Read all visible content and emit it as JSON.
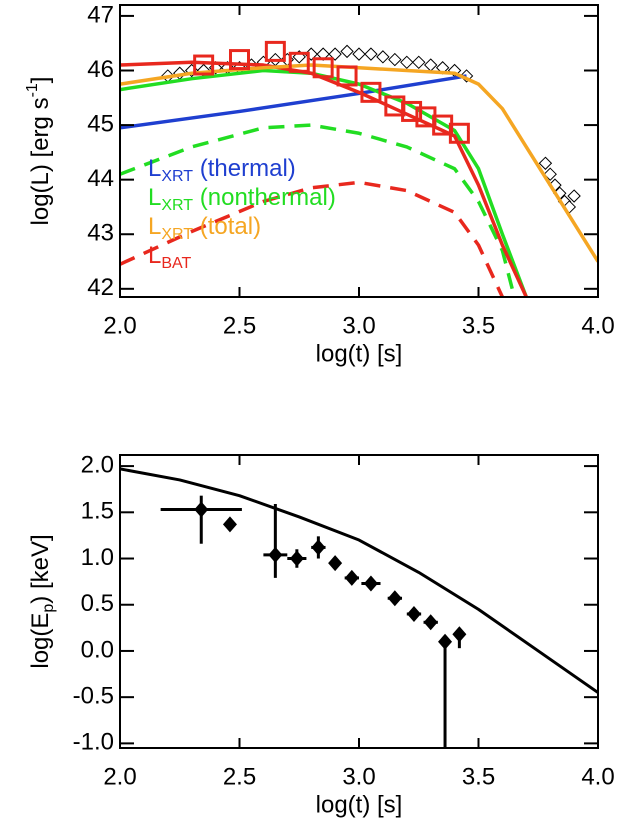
{
  "chart_data": [
    {
      "type": "line",
      "ylabel": "log(L) [erg s",
      "ylabel_sup": "-1",
      "ylabel_end": "]",
      "xlabel": "log(t) [s]",
      "xlim": [
        2.0,
        4.0
      ],
      "ylim": [
        41.85,
        47.2
      ],
      "xticks": [
        {
          "value": 2.0,
          "label": "2.0"
        },
        {
          "value": 2.5,
          "label": "2.5"
        },
        {
          "value": 3.0,
          "label": "3.0"
        },
        {
          "value": 3.5,
          "label": "3.5"
        },
        {
          "value": 4.0,
          "label": "4.0"
        }
      ],
      "yticks": [
        42,
        43,
        44,
        45,
        46,
        47
      ],
      "series": [
        {
          "kind": "markers",
          "marker": "diamond",
          "color": "#000000",
          "x": [
            2.2,
            2.25,
            2.3,
            2.35,
            2.4,
            2.45,
            2.5,
            2.55,
            2.6,
            2.65,
            2.7,
            2.75,
            2.8,
            2.85,
            2.9,
            2.95,
            3.0,
            3.05,
            3.1,
            3.15,
            3.2,
            3.25,
            3.3,
            3.35,
            3.4,
            3.45,
            3.78,
            3.8,
            3.82,
            3.84,
            3.86,
            3.88,
            3.9
          ],
          "y": [
            45.9,
            45.95,
            46.0,
            46.0,
            46.05,
            46.05,
            46.05,
            46.1,
            46.15,
            46.2,
            46.2,
            46.25,
            46.3,
            46.3,
            46.3,
            46.35,
            46.3,
            46.3,
            46.25,
            46.2,
            46.15,
            46.15,
            46.1,
            46.05,
            46.0,
            45.9,
            44.3,
            44.1,
            43.9,
            43.75,
            43.6,
            43.5,
            43.7
          ]
        },
        {
          "kind": "line",
          "dash": false,
          "color": "#1f3fd0",
          "name": "L",
          "subscript": "XRT",
          "label": "(thermal)",
          "x": [
            2.0,
            2.5,
            3.0,
            3.45
          ],
          "y": [
            44.95,
            45.25,
            45.58,
            45.9
          ]
        },
        {
          "kind": "line",
          "dash": false,
          "color": "#22dd22",
          "name": "L",
          "subscript": "XRT",
          "label": "(nonthermal)",
          "x": [
            2.0,
            2.3,
            2.6,
            2.8,
            3.0,
            3.2,
            3.4,
            3.5,
            3.6,
            3.7
          ],
          "y": [
            45.65,
            45.85,
            46.0,
            45.95,
            45.75,
            45.4,
            44.9,
            44.2,
            43.0,
            41.85
          ]
        },
        {
          "kind": "line",
          "dash": true,
          "color": "#22dd22",
          "x": [
            2.0,
            2.3,
            2.6,
            2.8,
            3.0,
            3.2,
            3.4,
            3.5,
            3.6,
            3.65
          ],
          "y": [
            44.1,
            44.6,
            44.95,
            45.0,
            44.85,
            44.6,
            44.2,
            43.6,
            42.7,
            41.85
          ]
        },
        {
          "kind": "line",
          "dash": false,
          "color": "#e8281e",
          "x": [
            2.0,
            2.3,
            2.6,
            2.8,
            3.0,
            3.2,
            3.4,
            3.5,
            3.6,
            3.7
          ],
          "y": [
            46.1,
            46.15,
            46.1,
            45.95,
            45.6,
            45.2,
            44.8,
            43.9,
            42.8,
            41.85
          ]
        },
        {
          "kind": "line",
          "dash": false,
          "color": "#f5a623",
          "name": "L",
          "subscript": "XRT",
          "label": "(total)",
          "x": [
            2.0,
            2.3,
            2.6,
            2.8,
            3.0,
            3.2,
            3.4,
            3.5,
            3.6,
            3.7,
            3.8,
            3.9,
            4.0
          ],
          "y": [
            45.75,
            45.95,
            46.05,
            46.1,
            46.05,
            46.0,
            45.95,
            45.75,
            45.3,
            44.6,
            43.9,
            43.2,
            42.5
          ]
        },
        {
          "kind": "line",
          "dash": true,
          "color": "#e8281e",
          "name": "L",
          "subscript": "BAT",
          "x": [
            2.0,
            2.3,
            2.6,
            2.8,
            3.0,
            3.2,
            3.4,
            3.5,
            3.6
          ],
          "y": [
            42.45,
            43.05,
            43.6,
            43.85,
            43.95,
            43.8,
            43.4,
            42.8,
            41.85
          ]
        },
        {
          "kind": "markers",
          "marker": "square",
          "color": "#e8281e",
          "x": [
            2.35,
            2.5,
            2.65,
            2.75,
            2.85,
            2.95,
            3.05,
            3.15,
            3.22,
            3.28,
            3.35,
            3.42
          ],
          "y": [
            46.1,
            46.2,
            46.35,
            46.15,
            46.05,
            45.9,
            45.6,
            45.35,
            45.25,
            45.15,
            45.0,
            44.85
          ]
        }
      ]
    },
    {
      "type": "errorbar",
      "ylabel": "log(E",
      "ylabel_sub": "p",
      "ylabel_end": ") [keV]",
      "xlabel": "log(t) [s]",
      "xlim": [
        2.0,
        4.0
      ],
      "ylim": [
        -1.05,
        2.12
      ],
      "xticks": [
        {
          "value": 2.0,
          "label": "2.0"
        },
        {
          "value": 2.5,
          "label": "2.5"
        },
        {
          "value": 3.0,
          "label": "3.0"
        },
        {
          "value": 3.5,
          "label": "3.5"
        },
        {
          "value": 4.0,
          "label": "4.0"
        }
      ],
      "yticks": [
        {
          "value": 2.0,
          "label": "2.0"
        },
        {
          "value": 1.5,
          "label": "1.5"
        },
        {
          "value": 1.0,
          "label": "1.0"
        },
        {
          "value": 0.5,
          "label": "0.5"
        },
        {
          "value": 0.0,
          "label": "0.0"
        },
        {
          "value": -0.5,
          "label": "-0.5"
        },
        {
          "value": -1.0,
          "label": "-1.0"
        }
      ],
      "curve": {
        "color": "#000000",
        "x": [
          2.0,
          2.25,
          2.5,
          2.75,
          3.0,
          3.25,
          3.5,
          3.75,
          4.0
        ],
        "y": [
          1.97,
          1.85,
          1.68,
          1.45,
          1.2,
          0.85,
          0.45,
          0.0,
          -0.45
        ]
      },
      "points": {
        "color": "#000000",
        "x": [
          2.34,
          2.46,
          2.65,
          2.74,
          2.83,
          2.9,
          2.97,
          3.05,
          3.15,
          3.23,
          3.3,
          3.36,
          3.42
        ],
        "y": [
          1.53,
          1.37,
          1.04,
          1.0,
          1.12,
          0.95,
          0.79,
          0.73,
          0.57,
          0.4,
          0.31,
          0.1,
          0.18
        ],
        "xerr": [
          0.17,
          0.02,
          0.05,
          0.04,
          0.03,
          0.02,
          0.03,
          0.04,
          0.03,
          0.03,
          0.03,
          0.02,
          0.02
        ],
        "yerr_lo": [
          0.37,
          0.06,
          0.25,
          0.1,
          0.12,
          0.06,
          0.03,
          0.03,
          0.03,
          0.02,
          0.02,
          1.2,
          0.15
        ],
        "yerr_hi": [
          0.15,
          0.06,
          0.55,
          0.1,
          0.12,
          0.06,
          0.03,
          0.03,
          0.03,
          0.02,
          0.02,
          0.05,
          0.05
        ]
      }
    }
  ]
}
